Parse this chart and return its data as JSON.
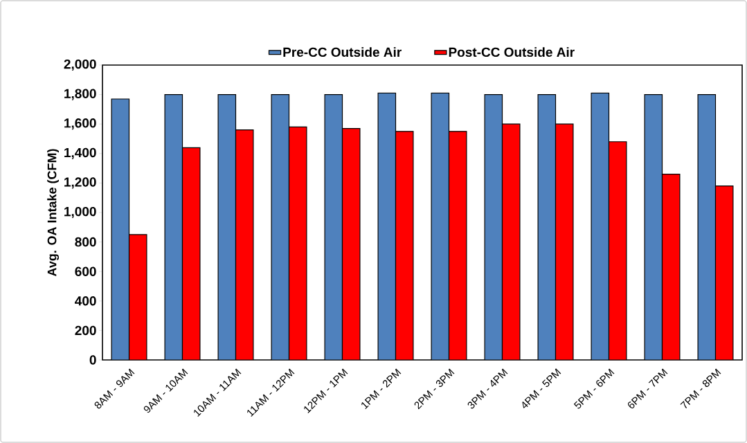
{
  "chart_data": {
    "type": "bar",
    "ylabel": "Avg. OA Intake (CFM)",
    "categories": [
      "8AM - 9AM",
      "9AM - 10AM",
      "10AM - 11AM",
      "11AM - 12PM",
      "12PM - 1PM",
      "1PM - 2PM",
      "2PM - 3PM",
      "3PM - 4PM",
      "4PM - 5PM",
      "5PM - 6PM",
      "6PM - 7PM",
      "7PM - 8PM"
    ],
    "series": [
      {
        "name": "Pre-CC Outside Air",
        "color": "#4f81bd",
        "values": [
          1770,
          1800,
          1800,
          1800,
          1800,
          1810,
          1810,
          1800,
          1800,
          1810,
          1800,
          1800
        ]
      },
      {
        "name": "Post-CC Outside Air",
        "color": "#ff0000",
        "values": [
          850,
          1440,
          1560,
          1580,
          1570,
          1550,
          1550,
          1600,
          1600,
          1480,
          1260,
          1180
        ]
      }
    ],
    "ylim": [
      0,
      2000
    ],
    "yticks": [
      0,
      200,
      400,
      600,
      800,
      {
        "value": 1000,
        "label": "1,000"
      },
      {
        "value": 1200,
        "label": "1,200"
      },
      {
        "value": 1400,
        "label": "1,400"
      },
      {
        "value": 1600,
        "label": "1,600"
      },
      {
        "value": 1800,
        "label": "1,800"
      },
      {
        "value": 2000,
        "label": "2,000"
      }
    ],
    "legend": "top"
  }
}
